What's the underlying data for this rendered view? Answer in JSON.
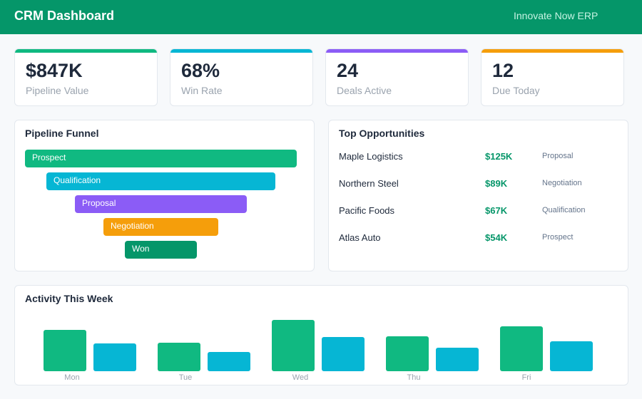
{
  "header": {
    "title": "CRM Dashboard",
    "org": "Innovate Now ERP"
  },
  "kpis": [
    {
      "value": "$847K",
      "label": "Pipeline Value",
      "color": "#10b981"
    },
    {
      "value": "68%",
      "label": "Win Rate",
      "color": "#06b6d4"
    },
    {
      "value": "24",
      "label": "Deals Active",
      "color": "#8b5cf6"
    },
    {
      "value": "12",
      "label": "Due Today",
      "color": "#f59e0b"
    }
  ],
  "funnel": {
    "title": "Pipeline Funnel",
    "stages": [
      {
        "label": "Prospect",
        "color": "#10b981"
      },
      {
        "label": "Qualification",
        "color": "#06b6d4"
      },
      {
        "label": "Proposal",
        "color": "#8b5cf6"
      },
      {
        "label": "Negotiation",
        "color": "#f59e0b"
      },
      {
        "label": "Won",
        "color": "#059669"
      }
    ]
  },
  "opportunities": {
    "title": "Top Opportunities",
    "rows": [
      {
        "name": "Maple Logistics",
        "amount": "$125K",
        "stage": "Proposal"
      },
      {
        "name": "Northern Steel",
        "amount": "$89K",
        "stage": "Negotiation"
      },
      {
        "name": "Pacific Foods",
        "amount": "$67K",
        "stage": "Qualification"
      },
      {
        "name": "Atlas Auto",
        "amount": "$54K",
        "stage": "Prospect"
      }
    ]
  },
  "activity": {
    "title": "Activity This Week",
    "days": [
      "Mon",
      "Tue",
      "Wed",
      "Thu",
      "Fri"
    ],
    "series": [
      {
        "color": "#10b981",
        "values": [
          58,
          40,
          72,
          49,
          63
        ]
      },
      {
        "color": "#06b6d4",
        "values": [
          39,
          27,
          48,
          33,
          42
        ]
      }
    ]
  }
}
